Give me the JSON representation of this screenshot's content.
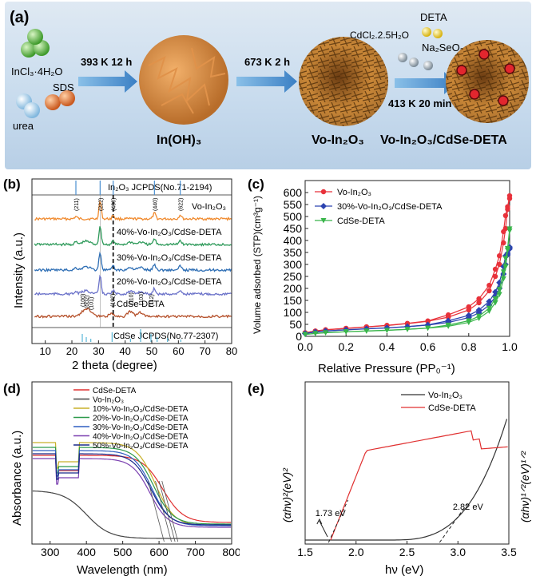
{
  "panel_a": {
    "label": "(a)",
    "reactant1": "InCl₃·4H₂O",
    "reactant2": "urea",
    "reactant3": "SDS",
    "step1": "393 K 12 h",
    "product1": "In(OH)₃",
    "step2": "673 K 2 h",
    "product2": "Vo-In₂O₃",
    "reagent1": "DETA",
    "reagent2": "CdCl₂.2.5H₂O",
    "reagent3": "Na₂SeO₃",
    "step3": "413 K 20 min",
    "product3": "Vo-In₂O₃/CdSe-DETA"
  },
  "chart_data": [
    {
      "panel": "(b)",
      "type": "line",
      "xlabel": "2 theta (degree)",
      "ylabel": "Intensity (a.u.)",
      "xlim": [
        5,
        80
      ],
      "xticks": [
        "10",
        "20",
        "30",
        "40",
        "50",
        "60",
        "70",
        "80"
      ],
      "top_reference": "In₂O₃ JCPDS(No.71-2194)",
      "bottom_reference": "CdSe JCPDS(No.77-2307)",
      "top_ref_peaks": [
        21.5,
        30.6,
        35.5,
        51.0,
        60.7
      ],
      "bottom_ref_peaks": [
        23.9,
        25.4,
        27.1,
        35.1,
        42.0,
        45.8,
        49.7,
        52.0,
        55.9,
        60.9
      ],
      "in2o3_hkl": [
        "(211)",
        "(222)",
        "(400)",
        "(440)",
        "(622)"
      ],
      "cdse_hkl": [
        "(100)",
        "(002)",
        "(101)",
        "(102)",
        "(110)",
        "(103)",
        "(112)"
      ],
      "series": [
        {
          "name": "Vo-In₂O₃",
          "color": "#f08a2e"
        },
        {
          "name": "40%-Vo-In₂O₃/CdSe-DETA",
          "color": "#2e9a5a"
        },
        {
          "name": "30%-Vo-In₂O₃/CdSe-DETA",
          "color": "#2f6fb5"
        },
        {
          "name": "20%-Vo-In₂O₃/CdSe-DETA",
          "color": "#6b72c9"
        },
        {
          "name": "CdSe-DETA",
          "color": "#b5502a"
        }
      ]
    },
    {
      "panel": "(c)",
      "type": "line",
      "xlabel": "Relative Pressure (PP₀⁻¹)",
      "ylabel": "Volume adsorbed (STP)(cm³g⁻¹)",
      "xlim": [
        0,
        1.0
      ],
      "ylim": [
        0,
        650
      ],
      "xticks": [
        "0.0",
        "0.2",
        "0.4",
        "0.6",
        "0.8",
        "1.0"
      ],
      "yticks": [
        "0",
        "50",
        "100",
        "150",
        "200",
        "250",
        "300",
        "350",
        "400",
        "450",
        "500",
        "550",
        "600"
      ],
      "x": [
        0.0,
        0.05,
        0.1,
        0.2,
        0.3,
        0.4,
        0.5,
        0.6,
        0.7,
        0.8,
        0.85,
        0.9,
        0.93,
        0.95,
        0.97,
        0.98,
        0.99,
        1.0
      ],
      "series": [
        {
          "name": "Vo-In₂O₃",
          "color": "#e8313a",
          "values": [
            15,
            22,
            27,
            33,
            39,
            45,
            53,
            63,
            80,
            110,
            140,
            190,
            250,
            300,
            390,
            450,
            530,
            575
          ]
        },
        {
          "name": "30%-Vo-In₂O₃/CdSe-DETA",
          "color": "#2c43b0",
          "values": [
            12,
            18,
            22,
            27,
            31,
            35,
            40,
            47,
            58,
            78,
            98,
            130,
            165,
            200,
            260,
            300,
            340,
            365
          ]
        },
        {
          "name": "CdSe-DETA",
          "color": "#39b54a",
          "values": [
            8,
            12,
            15,
            19,
            22,
            25,
            29,
            34,
            42,
            58,
            75,
            105,
            140,
            175,
            240,
            290,
            360,
            440
          ]
        }
      ]
    },
    {
      "panel": "(d)",
      "type": "line",
      "xlabel": "Wavelength (nm)",
      "ylabel": "Absorbance (a.u.)",
      "xlim": [
        250,
        800
      ],
      "xticks": [
        "300",
        "400",
        "500",
        "600",
        "700",
        "800"
      ],
      "series": [
        {
          "name": "CdSe-DETA",
          "color": "#e03030"
        },
        {
          "name": "Vo-In₂O₃",
          "color": "#444444"
        },
        {
          "name": "10%-Vo-In₂O₃/CdSe-DETA",
          "color": "#c8b12a"
        },
        {
          "name": "20%-Vo-In₂O₃/CdSe-DETA",
          "color": "#2c9a4a"
        },
        {
          "name": "30%-Vo-In₂O₃/CdSe-DETA",
          "color": "#2f5fc0"
        },
        {
          "name": "40%-Vo-In₂O₃/CdSe-DETA",
          "color": "#7a3fb0"
        },
        {
          "name": "50%-Vo-In₂O₃/CdSe-DETA",
          "color": "#1a2a8a"
        }
      ]
    },
    {
      "panel": "(e)",
      "type": "line",
      "xlabel": "hν (eV)",
      "ylabel_left": "(αhν)²(eV)²",
      "ylabel_right": "(αhν)¹ᐟ²(eV)¹ᐟ²",
      "xlim": [
        1.5,
        3.5
      ],
      "xticks": [
        "1.5",
        "2.0",
        "2.5",
        "3.0",
        "3.5"
      ],
      "annotations": [
        "1.73 eV",
        "2.82 eV"
      ],
      "series": [
        {
          "name": "Vo-In₂O₃",
          "color": "#333333"
        },
        {
          "name": "CdSe-DETA",
          "color": "#e03030"
        }
      ]
    }
  ]
}
